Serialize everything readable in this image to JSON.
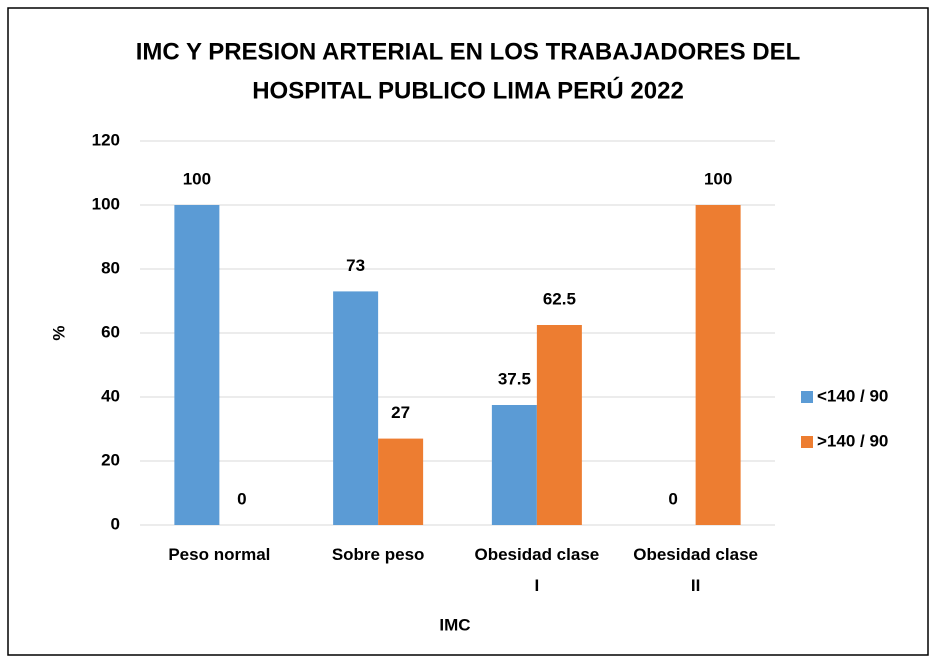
{
  "chart_data": {
    "type": "bar",
    "title": [
      "IMC Y PRESION ARTERIAL EN LOS TRABAJADORES DEL",
      "HOSPITAL  PUBLICO  LIMA PERÚ 2022"
    ],
    "x_label": "IMC",
    "y_label": "%",
    "categories": [
      "Peso normal",
      "Sobre peso",
      "Obesidad clase I",
      "Obesidad clase II"
    ],
    "series": [
      {
        "name": "<140 / 90",
        "color": "#5b9bd5",
        "values": [
          100,
          73,
          37.5,
          0
        ]
      },
      {
        "name": ">140 / 90",
        "color": "#ed7d31",
        "values": [
          0,
          27,
          62.5,
          100
        ]
      }
    ],
    "ylim": [
      0,
      120
    ],
    "yticks": [
      0,
      20,
      40,
      60,
      80,
      100,
      120
    ],
    "grid": true,
    "legend": "right"
  }
}
